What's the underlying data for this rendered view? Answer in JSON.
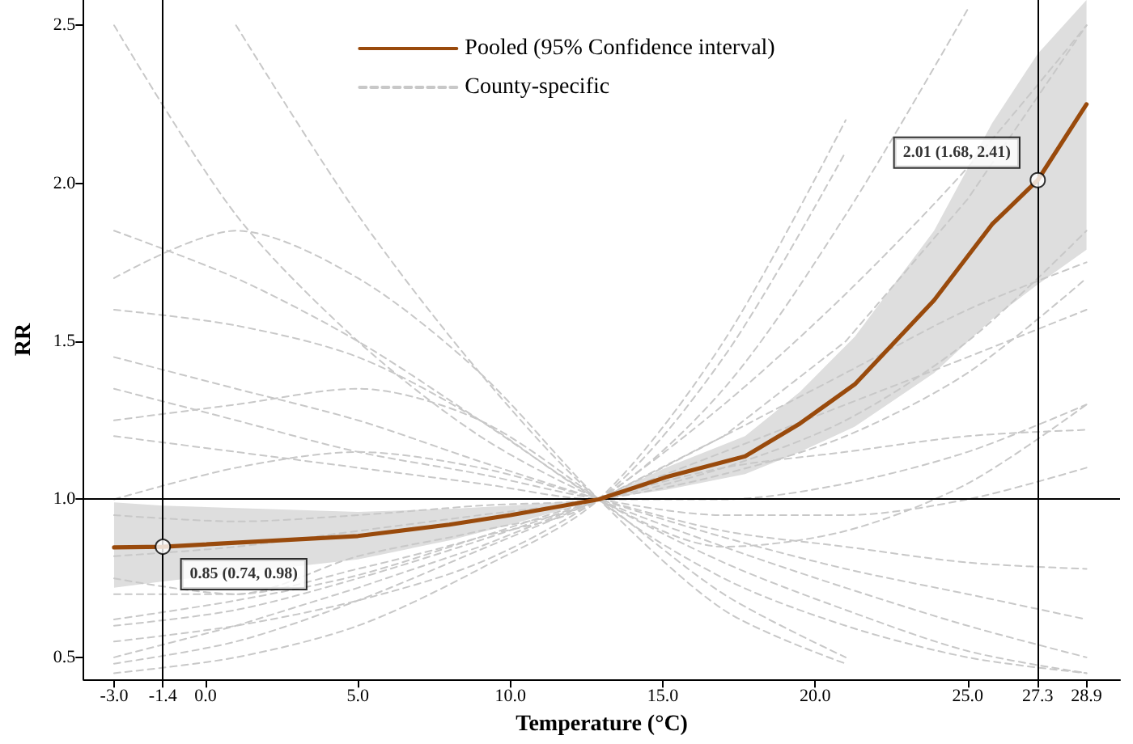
{
  "chart_data": {
    "type": "line",
    "xlabel": "Temperature (°C)",
    "ylabel": "RR",
    "xlim": [
      -4.0,
      30.0
    ],
    "ylim": [
      0.43,
      2.58
    ],
    "xticks": [
      {
        "value": -3.0,
        "label": "-3.0"
      },
      {
        "value": -1.4,
        "label": "-1.4"
      },
      {
        "value": 0,
        "label": "0.0"
      },
      {
        "value": 5,
        "label": "5.0"
      },
      {
        "value": 10,
        "label": "10.0"
      },
      {
        "value": 15,
        "label": "15.0"
      },
      {
        "value": 20,
        "label": "20.0"
      },
      {
        "value": 25,
        "label": "25.0"
      },
      {
        "value": 27.3,
        "label": "27.3"
      },
      {
        "value": 28.9,
        "label": "28.9"
      }
    ],
    "yticks": [
      0.5,
      {
        "value": 1,
        "label": "1.0"
      },
      1.5,
      {
        "value": 2,
        "label": "2.0"
      },
      2.5
    ],
    "legend": "top",
    "grid": false,
    "series": [
      {
        "name": "County-specific",
        "color": "#c8c8c8",
        "line_style": "dashed",
        "x": [
          -3,
          1,
          5,
          9,
          12.9,
          17,
          21,
          25,
          28.9
        ],
        "values": [
          0.5,
          0.6,
          0.72,
          0.85,
          1,
          1.2,
          1.5,
          1.95,
          2.5
        ]
      },
      {
        "color": "#c8c8c8",
        "line_style": "dashed",
        "x": [
          -3,
          1,
          5,
          9,
          12.9,
          17,
          21,
          25,
          28.9
        ],
        "values": [
          1.45,
          1.35,
          1.25,
          1.12,
          1,
          0.88,
          0.78,
          0.7,
          0.62
        ]
      },
      {
        "color": "#c8c8c8",
        "line_style": "dashed",
        "x": [
          -3,
          1,
          5,
          9,
          12.9,
          17,
          21,
          25,
          28.9
        ],
        "values": [
          2.5,
          1.9,
          1.5,
          1.2,
          1,
          0.85,
          0.72,
          0.6,
          0.5
        ]
      },
      {
        "color": "#c8c8c8",
        "line_style": "dashed",
        "x": [
          -3,
          1,
          5,
          9,
          12.9,
          17,
          21,
          25
        ],
        "values": [
          0.7,
          0.7,
          0.82,
          0.9,
          1,
          1.35,
          1.9,
          2.55
        ]
      },
      {
        "color": "#c8c8c8",
        "line_style": "dashed",
        "x": [
          -3,
          1,
          5,
          9,
          12.9,
          17,
          21,
          25,
          28.9
        ],
        "values": [
          1.2,
          1.15,
          1.1,
          1.05,
          1,
          1.0,
          1.05,
          1.15,
          1.3
        ]
      },
      {
        "color": "#c8c8c8",
        "line_style": "dashed",
        "x": [
          -3,
          1,
          5,
          9,
          12.9,
          17,
          21,
          25,
          28.9
        ],
        "values": [
          0.6,
          0.65,
          0.75,
          0.87,
          1,
          1.15,
          1.3,
          1.45,
          1.6
        ]
      },
      {
        "color": "#c8c8c8",
        "line_style": "dashed",
        "x": [
          -3,
          1,
          5,
          9,
          12.9,
          17,
          21,
          25,
          28.9
        ],
        "values": [
          1.85,
          1.7,
          1.5,
          1.25,
          1,
          0.8,
          0.65,
          0.52,
          0.45
        ]
      },
      {
        "color": "#c8c8c8",
        "line_style": "dashed",
        "x": [
          -3,
          1,
          5,
          9,
          12.9,
          17,
          21
        ],
        "values": [
          0.45,
          0.5,
          0.6,
          0.78,
          1,
          1.5,
          2.2
        ]
      },
      {
        "color": "#c8c8c8",
        "line_style": "dashed",
        "x": [
          -3,
          1,
          5,
          9,
          12.9,
          17,
          21,
          25,
          28.9
        ],
        "values": [
          1.0,
          1.1,
          1.15,
          1.1,
          1,
          0.9,
          0.85,
          0.8,
          0.78
        ]
      },
      {
        "color": "#c8c8c8",
        "line_style": "dashed",
        "x": [
          -3,
          1,
          5,
          9,
          12.9,
          17,
          21,
          25,
          28.9
        ],
        "values": [
          0.82,
          0.85,
          0.9,
          0.95,
          1,
          1.1,
          1.25,
          1.5,
          1.85
        ]
      },
      {
        "color": "#c8c8c8",
        "line_style": "dashed",
        "x": [
          -3,
          1,
          5,
          9,
          12.9,
          17,
          21
        ],
        "values": [
          1.25,
          1.3,
          1.35,
          1.25,
          1,
          0.7,
          0.5
        ]
      },
      {
        "color": "#c8c8c8",
        "line_style": "dashed",
        "x": [
          -3,
          1,
          5,
          9,
          12.9,
          17,
          21,
          25,
          28.9
        ],
        "values": [
          0.55,
          0.6,
          0.68,
          0.8,
          1,
          1.3,
          1.65,
          2.05,
          2.5
        ]
      },
      {
        "color": "#c8c8c8",
        "line_style": "dashed",
        "x": [
          1,
          5,
          9,
          12.9,
          17,
          21,
          25,
          28.9
        ],
        "values": [
          2.5,
          1.9,
          1.4,
          1,
          0.75,
          0.6,
          0.5,
          0.45
        ]
      },
      {
        "color": "#c8c8c8",
        "line_style": "dashed",
        "x": [
          -3,
          1,
          5,
          9,
          12.9,
          17,
          21,
          25,
          28.9
        ],
        "values": [
          0.95,
          0.93,
          0.95,
          0.98,
          1,
          1.08,
          1.2,
          1.4,
          1.7
        ]
      },
      {
        "color": "#c8c8c8",
        "line_style": "dashed",
        "x": [
          -3,
          1,
          5,
          9,
          12.9,
          17,
          21,
          25,
          28.9
        ],
        "values": [
          1.6,
          1.55,
          1.45,
          1.25,
          1,
          0.85,
          0.9,
          1.05,
          1.3
        ]
      },
      {
        "color": "#c8c8c8",
        "line_style": "dashed",
        "x": [
          -3,
          1,
          5,
          9,
          12.9,
          17,
          21,
          25,
          28.9
        ],
        "values": [
          0.48,
          0.55,
          0.68,
          0.84,
          1,
          1.2,
          1.4,
          1.6,
          1.75
        ]
      },
      {
        "color": "#c8c8c8",
        "line_style": "dashed",
        "x": [
          -3,
          1,
          5,
          9,
          12.9,
          17,
          21
        ],
        "values": [
          1.7,
          1.85,
          1.7,
          1.4,
          1,
          0.65,
          0.48
        ]
      },
      {
        "color": "#c8c8c8",
        "line_style": "dashed",
        "x": [
          -3,
          1,
          5,
          9,
          12.9,
          17,
          21
        ],
        "values": [
          0.75,
          0.7,
          0.78,
          0.88,
          1,
          1.45,
          2.1
        ]
      },
      {
        "color": "#c8c8c8",
        "line_style": "dashed",
        "x": [
          -3,
          1,
          5,
          9,
          12.9,
          17,
          21,
          25,
          28.9
        ],
        "values": [
          1.35,
          1.25,
          1.15,
          1.08,
          1,
          0.95,
          0.95,
          1.0,
          1.1
        ]
      },
      {
        "color": "#c8c8c8",
        "line_style": "dashed",
        "x": [
          -3,
          1,
          5,
          9,
          12.9,
          17,
          21,
          25,
          28.9
        ],
        "values": [
          0.62,
          0.68,
          0.76,
          0.88,
          1,
          1.1,
          1.15,
          1.2,
          1.22
        ]
      },
      {
        "name": "Pooled (95% Confidence interval)",
        "color": "#994a0c",
        "line_style": "solid",
        "x": [
          -3,
          -1.4,
          5,
          8,
          10,
          12.9,
          15.1,
          17.7,
          19.5,
          21.3,
          23.9,
          25.8,
          27.3,
          28.9
        ],
        "values": [
          0.848,
          0.85,
          0.884,
          0.92,
          0.95,
          1.0,
          1.07,
          1.136,
          1.24,
          1.364,
          1.63,
          1.87,
          2.01,
          2.25
        ],
        "lower": [
          0.72,
          0.74,
          0.81,
          0.87,
          0.92,
          1.0,
          1.03,
          1.08,
          1.15,
          1.23,
          1.4,
          1.57,
          1.68,
          1.79
        ],
        "upper": [
          0.99,
          0.98,
          0.96,
          0.97,
          0.98,
          1.0,
          1.1,
          1.2,
          1.34,
          1.515,
          1.85,
          2.19,
          2.41,
          2.58
        ]
      }
    ],
    "ref_lines": [
      {
        "axis": "x",
        "value": -1.4,
        "color": "#000000"
      },
      {
        "axis": "x",
        "value": 27.3,
        "color": "#000000"
      },
      {
        "axis": "y",
        "value": 1.0,
        "color": "#000000"
      }
    ],
    "annotations": [
      {
        "text": "0.85 (0.74, 0.98)",
        "x": -1.4,
        "y": 0.85
      },
      {
        "text": "2.01 (1.68, 2.41)",
        "x": 27.3,
        "y": 2.01
      }
    ]
  }
}
